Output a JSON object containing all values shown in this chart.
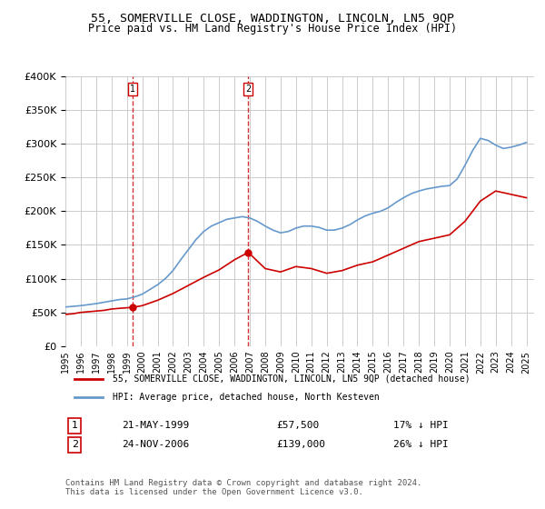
{
  "title": "55, SOMERVILLE CLOSE, WADDINGTON, LINCOLN, LN5 9QP",
  "subtitle": "Price paid vs. HM Land Registry's House Price Index (HPI)",
  "legend_property": "55, SOMERVILLE CLOSE, WADDINGTON, LINCOLN, LN5 9QP (detached house)",
  "legend_hpi": "HPI: Average price, detached house, North Kesteven",
  "footer": "Contains HM Land Registry data © Crown copyright and database right 2024.\nThis data is licensed under the Open Government Licence v3.0.",
  "sale1_label": "1",
  "sale1_date": "21-MAY-1999",
  "sale1_price": "£57,500",
  "sale1_hpi": "17% ↓ HPI",
  "sale1_year": 1999.38,
  "sale1_value": 57500,
  "sale2_label": "2",
  "sale2_date": "24-NOV-2006",
  "sale2_price": "£139,000",
  "sale2_hpi": "26% ↓ HPI",
  "sale2_year": 2006.9,
  "sale2_value": 139000,
  "property_color": "#cc0000",
  "hpi_color": "#6699cc",
  "vline_color": "#cc0000",
  "ylim": [
    0,
    400000
  ],
  "xlim_start": 1995.0,
  "xlim_end": 2025.5,
  "background_color": "#ffffff",
  "grid_color": "#cccccc",
  "hpi_years": [
    1995,
    1995.5,
    1996,
    1996.5,
    1997,
    1997.5,
    1998,
    1998.5,
    1999,
    1999.5,
    2000,
    2000.5,
    2001,
    2001.5,
    2002,
    2002.5,
    2003,
    2003.5,
    2004,
    2004.5,
    2005,
    2005.5,
    2006,
    2006.5,
    2007,
    2007.5,
    2008,
    2008.5,
    2009,
    2009.5,
    2010,
    2010.5,
    2011,
    2011.5,
    2012,
    2012.5,
    2013,
    2013.5,
    2014,
    2014.5,
    2015,
    2015.5,
    2016,
    2016.5,
    2017,
    2017.5,
    2018,
    2018.5,
    2019,
    2019.5,
    2020,
    2020.5,
    2021,
    2021.5,
    2022,
    2022.5,
    2023,
    2023.5,
    2024,
    2024.5,
    2025
  ],
  "hpi_values": [
    58000,
    59000,
    60000,
    61500,
    63000,
    65000,
    67000,
    69000,
    70000,
    73000,
    77000,
    84000,
    91000,
    100000,
    112000,
    128000,
    143000,
    158000,
    170000,
    178000,
    183000,
    188000,
    190000,
    192000,
    190000,
    185000,
    178000,
    172000,
    168000,
    170000,
    175000,
    178000,
    178000,
    176000,
    172000,
    172000,
    175000,
    180000,
    187000,
    193000,
    197000,
    200000,
    205000,
    213000,
    220000,
    226000,
    230000,
    233000,
    235000,
    237000,
    238000,
    248000,
    268000,
    290000,
    308000,
    305000,
    298000,
    293000,
    295000,
    298000,
    302000
  ],
  "prop_years": [
    1995,
    1995.5,
    1996,
    1996.5,
    1997,
    1997.5,
    1998,
    1998.5,
    1999.38,
    2000,
    2001,
    2002,
    2003,
    2004,
    2005,
    2006,
    2006.9,
    2008,
    2009,
    2010,
    2011,
    2012,
    2013,
    2014,
    2015,
    2016,
    2017,
    2018,
    2019,
    2020,
    2021,
    2022,
    2023,
    2024,
    2025
  ],
  "prop_values": [
    47000,
    48000,
    50000,
    51000,
    52000,
    53000,
    55000,
    56000,
    57500,
    60000,
    68000,
    78000,
    90000,
    102000,
    113000,
    128000,
    139000,
    115000,
    110000,
    118000,
    115000,
    108000,
    112000,
    120000,
    125000,
    135000,
    145000,
    155000,
    160000,
    165000,
    185000,
    215000,
    230000,
    225000,
    220000
  ],
  "xtick_years": [
    1995,
    1996,
    1997,
    1998,
    1999,
    2000,
    2001,
    2002,
    2003,
    2004,
    2005,
    2006,
    2007,
    2008,
    2009,
    2010,
    2011,
    2012,
    2013,
    2014,
    2015,
    2016,
    2017,
    2018,
    2019,
    2020,
    2021,
    2022,
    2023,
    2024,
    2025
  ]
}
